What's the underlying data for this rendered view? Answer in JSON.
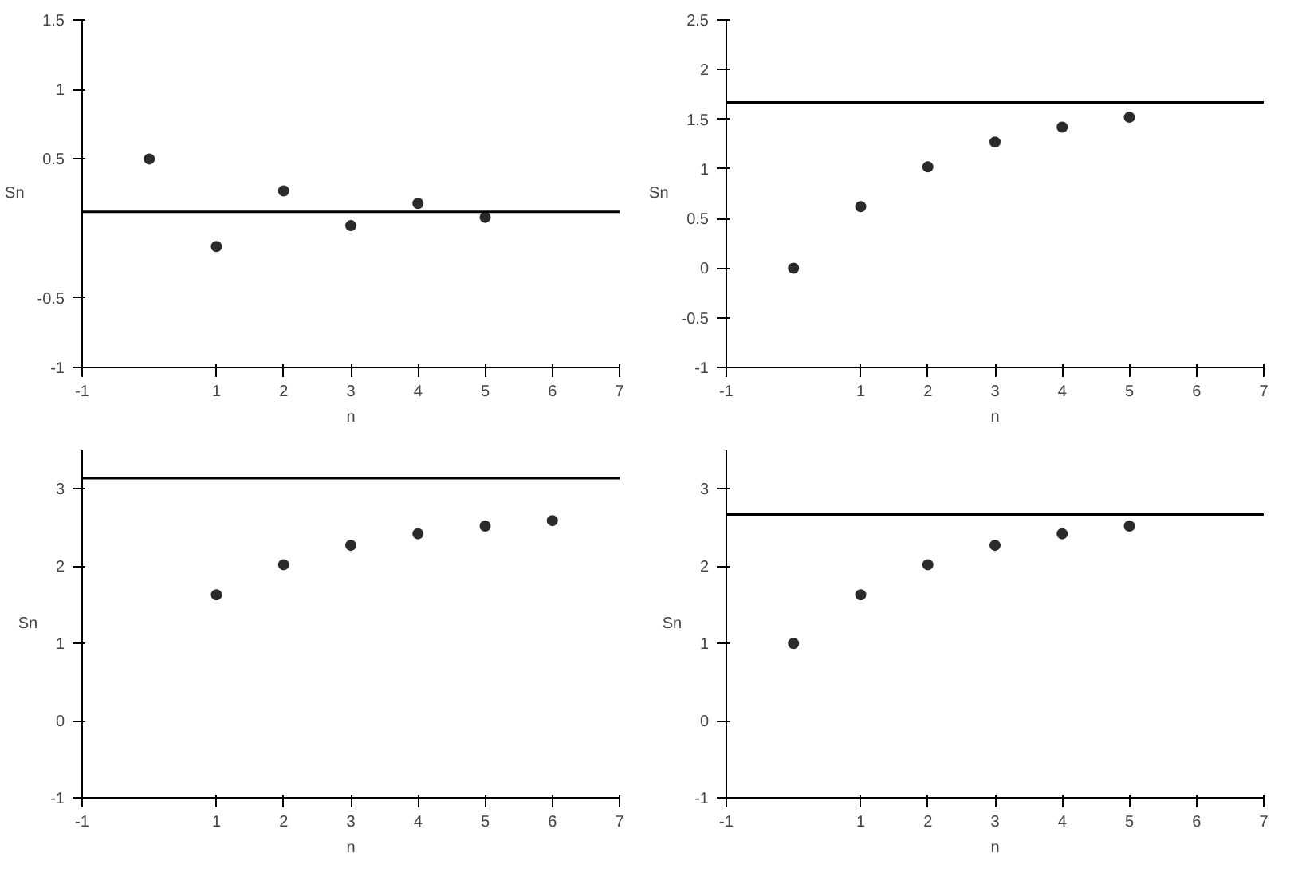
{
  "chart_data": [
    {
      "type": "scatter",
      "xlabel": "n",
      "ylabel": "Sn",
      "marker": "circle",
      "grid": false,
      "xlim": [
        -1,
        7
      ],
      "ylim": [
        -1,
        1.5
      ],
      "xticks": [
        -1,
        1,
        2,
        3,
        4,
        5,
        6,
        7
      ],
      "yticks": [
        -1,
        -0.5,
        0.5,
        1,
        1.5
      ],
      "x": [
        0,
        1,
        2,
        3,
        4,
        5
      ],
      "series": [
        {
          "color": "#2b2b2b",
          "values": [
            0.5,
            -0.13,
            0.27,
            0.02,
            0.18,
            0.08
          ]
        }
      ],
      "ref_lines": [
        {
          "axis": "y",
          "value": 0.12,
          "color": "#000000"
        }
      ]
    },
    {
      "type": "scatter",
      "xlabel": "n",
      "ylabel": "Sn",
      "marker": "circle",
      "grid": false,
      "xlim": [
        -1,
        7
      ],
      "ylim": [
        -1,
        2.5
      ],
      "xticks": [
        -1,
        1,
        2,
        3,
        4,
        5,
        6,
        7
      ],
      "yticks": [
        -1,
        -0.5,
        0,
        0.5,
        1,
        1.5,
        2,
        2.5
      ],
      "x": [
        0,
        1,
        2,
        3,
        4,
        5
      ],
      "series": [
        {
          "color": "#2b2b2b",
          "values": [
            0,
            0.62,
            1.02,
            1.27,
            1.42,
            1.52
          ]
        }
      ],
      "ref_lines": [
        {
          "axis": "y",
          "value": 1.67,
          "color": "#000000"
        }
      ]
    },
    {
      "type": "scatter",
      "xlabel": "n",
      "ylabel": "Sn",
      "marker": "circle",
      "grid": false,
      "xlim": [
        -1,
        7
      ],
      "ylim": [
        -1,
        3.5
      ],
      "xticks": [
        -1,
        1,
        2,
        3,
        4,
        5,
        6,
        7
      ],
      "yticks": [
        -1,
        0,
        1,
        2,
        3
      ],
      "x": [
        1,
        2,
        3,
        4,
        5,
        6
      ],
      "series": [
        {
          "color": "#2b2b2b",
          "values": [
            1.63,
            2.02,
            2.27,
            2.42,
            2.52,
            2.59
          ]
        }
      ],
      "ref_lines": [
        {
          "axis": "y",
          "value": 3.14,
          "color": "#000000"
        }
      ]
    },
    {
      "type": "scatter",
      "xlabel": "n",
      "ylabel": "Sn",
      "marker": "circle",
      "grid": false,
      "xlim": [
        -1,
        7
      ],
      "ylim": [
        -1,
        3.5
      ],
      "xticks": [
        -1,
        1,
        2,
        3,
        4,
        5,
        6,
        7
      ],
      "yticks": [
        -1,
        0,
        1,
        2,
        3
      ],
      "x": [
        0,
        1,
        2,
        3,
        4,
        5
      ],
      "series": [
        {
          "color": "#2b2b2b",
          "values": [
            1,
            1.63,
            2.02,
            2.27,
            2.42,
            2.52
          ]
        }
      ],
      "ref_lines": [
        {
          "axis": "y",
          "value": 2.67,
          "color": "#000000"
        }
      ]
    }
  ]
}
